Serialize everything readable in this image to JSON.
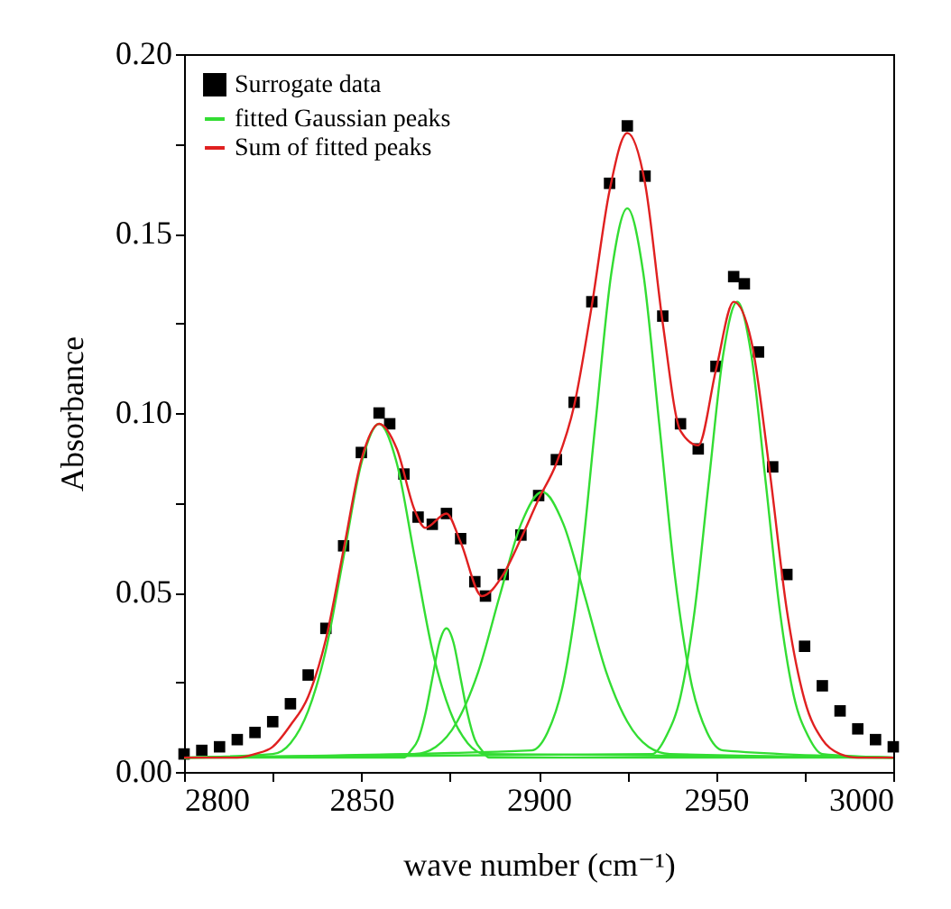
{
  "chart_data": {
    "type": "line",
    "xlabel": "wave number (cm⁻¹)",
    "ylabel": "Absorbance",
    "xlim": [
      2800,
      3000
    ],
    "ylim": [
      0,
      0.2
    ],
    "xticks": [
      2800,
      {
        "value": 2825,
        "label": null
      },
      2850,
      {
        "value": 2875,
        "label": null
      },
      2900,
      {
        "value": 2925,
        "label": null
      },
      2950,
      {
        "value": 2975,
        "label": null
      },
      3000
    ],
    "yticks": [
      {
        "value": 0,
        "label": "0.00"
      },
      {
        "value": 0.025,
        "label": null
      },
      0.05,
      {
        "value": 0.075,
        "label": null
      },
      {
        "value": 0.1,
        "label": "0.10"
      },
      {
        "value": 0.125,
        "label": null
      },
      0.15,
      {
        "value": 0.175,
        "label": null
      },
      {
        "value": 0.2,
        "label": "0.20"
      }
    ],
    "grid": false,
    "legend": "top left",
    "series": [
      {
        "name": "Surrogate data",
        "type": "scatter",
        "marker": "square",
        "color": "#000000",
        "x": [
          2800,
          2805,
          2810,
          2815,
          2820,
          2825,
          2830,
          2835,
          2840,
          2845,
          2850,
          2855,
          2858,
          2862,
          2866,
          2870,
          2874,
          2878,
          2882,
          2885,
          2890,
          2895,
          2900,
          2905,
          2910,
          2915,
          2920,
          2925,
          2930,
          2935,
          2940,
          2945,
          2950,
          2955,
          2958,
          2962,
          2966,
          2970,
          2975,
          2980,
          2985,
          2990,
          2995,
          3000
        ],
        "values": [
          0.005,
          0.006,
          0.007,
          0.009,
          0.011,
          0.014,
          0.019,
          0.027,
          0.04,
          0.063,
          0.089,
          0.1,
          0.097,
          0.083,
          0.071,
          0.069,
          0.072,
          0.065,
          0.053,
          0.049,
          0.055,
          0.066,
          0.077,
          0.087,
          0.103,
          0.131,
          0.164,
          0.18,
          0.166,
          0.127,
          0.097,
          0.09,
          0.113,
          0.138,
          0.136,
          0.117,
          0.085,
          0.055,
          0.035,
          0.024,
          0.017,
          0.012,
          0.009,
          0.007
        ]
      },
      {
        "name": "fitted Gaussian peaks",
        "color": "#33dd33",
        "x": [
          2800,
          2825,
          2830,
          2835,
          2840,
          2845,
          2850,
          2855,
          2860,
          2865,
          2870,
          2875,
          2880,
          2885,
          3000
        ],
        "values": [
          0.004,
          0.005,
          0.008,
          0.017,
          0.034,
          0.06,
          0.086,
          0.097,
          0.086,
          0.06,
          0.034,
          0.017,
          0.008,
          0.005,
          0.004
        ]
      },
      {
        "color": "#33dd33",
        "x": [
          2800,
          2862,
          2864,
          2866,
          2868,
          2870,
          2872,
          2874,
          2876,
          2878,
          2880,
          2882,
          2884,
          2886,
          3000
        ],
        "values": [
          0.004,
          0.004,
          0.006,
          0.009,
          0.016,
          0.026,
          0.036,
          0.04,
          0.036,
          0.026,
          0.016,
          0.009,
          0.006,
          0.004,
          0.004
        ]
      },
      {
        "color": "#33dd33",
        "x": [
          2800,
          2865,
          2871,
          2877,
          2883,
          2889,
          2895,
          2901,
          2907,
          2913,
          2919,
          2925,
          2931,
          2937,
          3000
        ],
        "values": [
          0.004,
          0.005,
          0.007,
          0.014,
          0.028,
          0.049,
          0.069,
          0.078,
          0.069,
          0.049,
          0.028,
          0.014,
          0.007,
          0.005,
          0.004
        ]
      },
      {
        "color": "#33dd33",
        "x": [
          2800,
          2898,
          2902.5,
          2907,
          2911.5,
          2916,
          2920.5,
          2925,
          2929.5,
          2934,
          2938.5,
          2943,
          2947.5,
          2952,
          3000
        ],
        "values": [
          0.004,
          0.006,
          0.011,
          0.025,
          0.054,
          0.097,
          0.139,
          0.157,
          0.139,
          0.097,
          0.054,
          0.025,
          0.011,
          0.006,
          0.004
        ]
      },
      {
        "color": "#33dd33",
        "x": [
          2800,
          2932,
          2936,
          2940,
          2944,
          2948,
          2952,
          2956,
          2960,
          2964,
          2968,
          2972,
          2976,
          2980,
          3000
        ],
        "values": [
          0.004,
          0.005,
          0.01,
          0.021,
          0.045,
          0.081,
          0.116,
          0.131,
          0.116,
          0.081,
          0.045,
          0.021,
          0.01,
          0.005,
          0.004
        ]
      },
      {
        "name": "Sum of fitted peaks",
        "color": "#e02020",
        "x": [
          2800,
          2805,
          2810,
          2815,
          2820,
          2825,
          2830,
          2835,
          2840,
          2845,
          2850,
          2855,
          2860,
          2865,
          2868,
          2874,
          2878,
          2884,
          2890,
          2895,
          2900,
          2905,
          2910,
          2915,
          2920,
          2925,
          2930,
          2935,
          2940,
          2945,
          2950,
          2955,
          2960,
          2965,
          2970,
          2975,
          2980,
          2985,
          2990,
          3000
        ],
        "values": [
          0.004,
          0.004,
          0.004,
          0.004,
          0.005,
          0.007,
          0.013,
          0.021,
          0.037,
          0.062,
          0.087,
          0.097,
          0.09,
          0.073,
          0.068,
          0.072,
          0.064,
          0.049,
          0.055,
          0.065,
          0.076,
          0.086,
          0.102,
          0.13,
          0.162,
          0.178,
          0.164,
          0.125,
          0.095,
          0.091,
          0.112,
          0.131,
          0.12,
          0.085,
          0.045,
          0.02,
          0.009,
          0.005,
          0.004,
          0.004
        ]
      }
    ]
  }
}
